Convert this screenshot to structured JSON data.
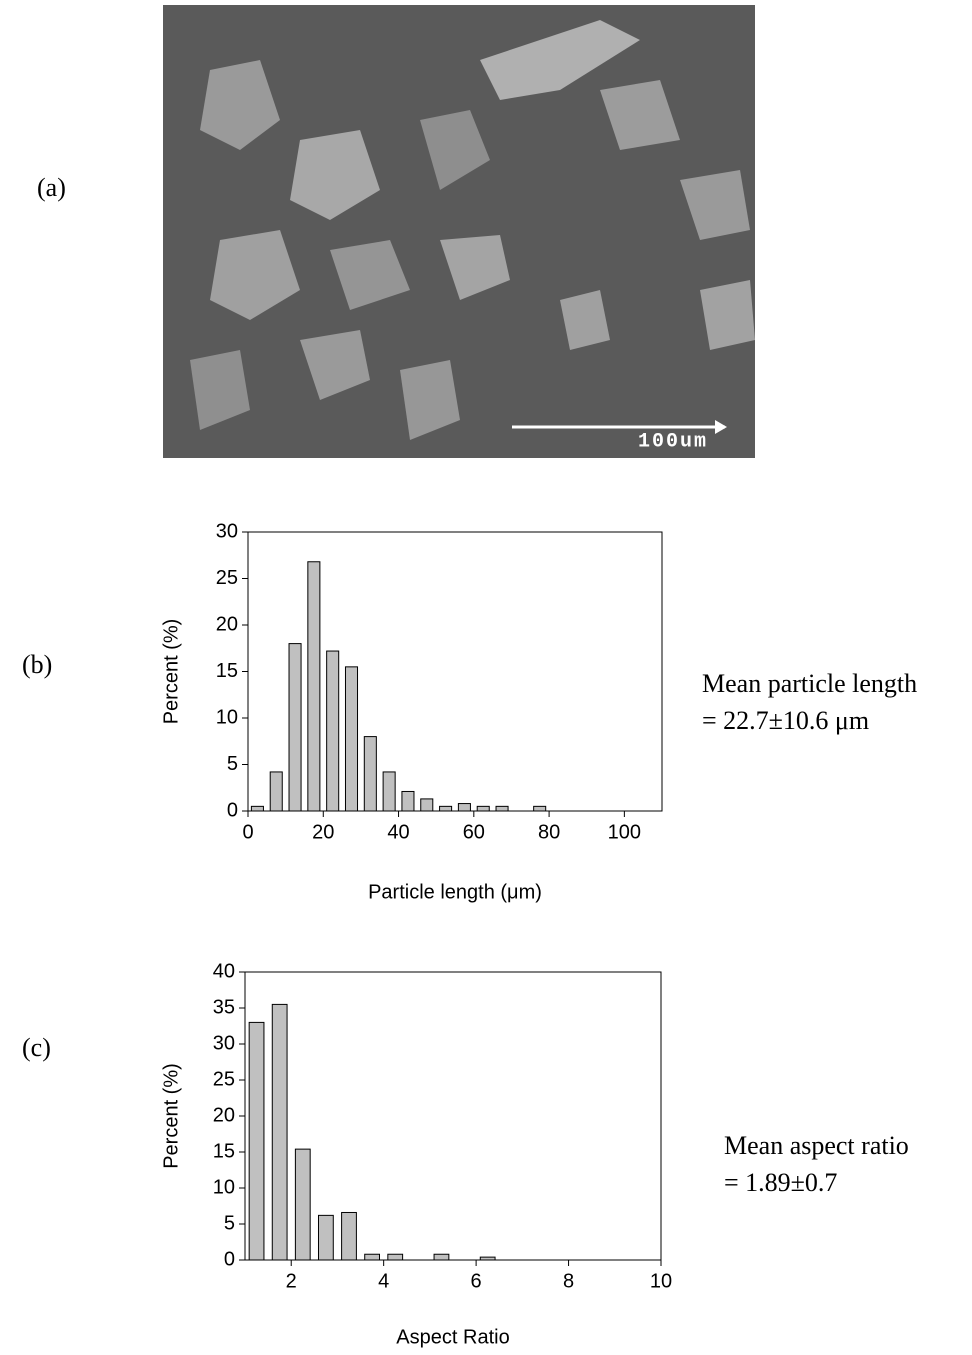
{
  "figure": {
    "label": "(a)",
    "scale_bar": "100um"
  },
  "chart_data": [
    {
      "type": "bar",
      "panel_label": "(b)",
      "x": [
        2.5,
        7.5,
        12.5,
        17.5,
        22.5,
        27.5,
        32.5,
        37.5,
        42.5,
        47.5,
        52.5,
        57.5,
        62.5,
        67.5,
        72.5,
        77.5
      ],
      "values": [
        0.5,
        4.2,
        18,
        26.8,
        17.2,
        15.5,
        8,
        4.2,
        2.1,
        1.3,
        0.5,
        0.8,
        0.5,
        0.5,
        0,
        0.5
      ],
      "color": "#c0c0c0",
      "xlim": [
        0,
        110
      ],
      "xticks": [
        0,
        20,
        40,
        60,
        80,
        100
      ],
      "ylim": [
        0,
        30
      ],
      "yticks": [
        0,
        5,
        10,
        15,
        20,
        25,
        30
      ],
      "x_label": "Particle length (μm)",
      "y_label": "Percent (%)",
      "annotation": [
        "Mean particle length",
        "= 22.7±10.6 μm"
      ]
    },
    {
      "type": "bar",
      "panel_label": "(c)",
      "x": [
        1.25,
        1.75,
        2.25,
        2.75,
        3.25,
        3.75,
        4.25,
        5.25,
        6.25
      ],
      "values": [
        33,
        35.5,
        15.4,
        6.2,
        6.6,
        0.8,
        0.8,
        0.8,
        0.4
      ],
      "color": "#c0c0c0",
      "xlim": [
        1,
        10
      ],
      "xticks": [
        2,
        4,
        6,
        8,
        10
      ],
      "ylim": [
        0,
        40
      ],
      "yticks": [
        0,
        5,
        10,
        15,
        20,
        25,
        30,
        35,
        40
      ],
      "x_label": "Aspect Ratio",
      "y_label": "Percent (%)",
      "annotation": [
        "Mean aspect ratio",
        "= 1.89±0.7"
      ]
    }
  ]
}
